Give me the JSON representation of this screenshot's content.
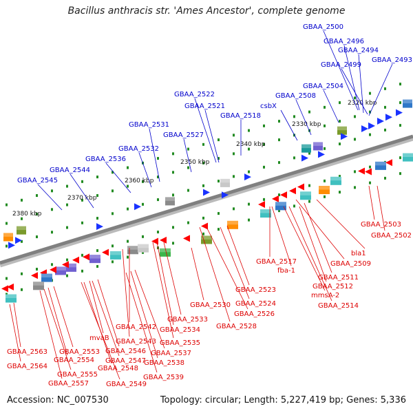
{
  "title": "Bacillus anthracis str. 'Ames Ancestor', complete genome",
  "footer": {
    "accession": "Accession: NC_007530",
    "summary": "Topology: circular; Length: 5,227,419 bp; Genes: 5,336"
  },
  "colors": {
    "backbone": "#808080",
    "forward_label": "#0000cc",
    "reverse_label": "#dd0000",
    "tick": "#228b22",
    "forward_gene": "#1a33ff",
    "reverse_gene": "#ff0000"
  },
  "ruler": [
    {
      "label": "2320 kbp"
    },
    {
      "label": "2330 kbp"
    },
    {
      "label": "2340 kbp"
    },
    {
      "label": "2350 kbp"
    },
    {
      "label": "2360 kbp"
    },
    {
      "label": "2370 kbp"
    },
    {
      "label": "2380 kbp"
    }
  ],
  "forward_labels": [
    "GBAA_2500",
    "GBAA_2496",
    "GBAA_2494",
    "GBAA_2499",
    "GBAA_2493",
    "GBAA_2504",
    "GBAA_2508",
    "csbX",
    "GBAA_2522",
    "GBAA_2521",
    "GBAA_2518",
    "GBAA_2531",
    "GBAA_2527",
    "GBAA_2532",
    "GBAA_2536",
    "GBAA_2544",
    "GBAA_2545"
  ],
  "reverse_labels": [
    "GBAA_2503",
    "GBAA_2502",
    "bla1",
    "GBAA_2509",
    "GBAA_2517",
    "fba-1",
    "GBAA_2511",
    "GBAA_2512",
    "mmsA-2",
    "GBAA_2514",
    "GBAA_2523",
    "GBAA_2524",
    "GBAA_2526",
    "GBAA_2528",
    "GBAA_2530",
    "GBAA_2533",
    "GBAA_2534",
    "GBAA_2535",
    "GBAA_2542",
    "GBAA_2543",
    "mvaB",
    "GBAA_2537",
    "GBAA_2538",
    "GBAA_2539",
    "GBAA_2546",
    "GBAA_2547",
    "GBAA_2548",
    "GBAA_2549",
    "GBAA_2553",
    "GBAA_2554",
    "GBAA_2555",
    "GBAA_2557",
    "GBAA_2563",
    "GBAA_2564"
  ]
}
